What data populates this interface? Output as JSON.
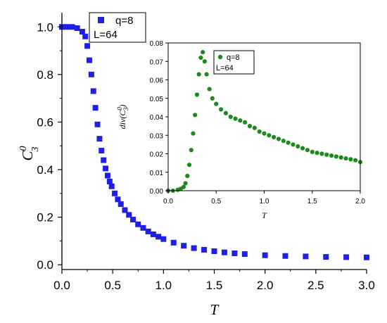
{
  "colors": {
    "main_series": "#1f1fe8",
    "inset_series": "#1e8a1e",
    "axis": "#000000",
    "background": "#ffffff"
  },
  "chart_data": [
    {
      "type": "scatter",
      "marker": "square",
      "xlabel": "T",
      "ylabel": "C3^0",
      "ylabel_main": "C",
      "ylabel_sub": "3",
      "ylabel_sup": "0",
      "xlim": [
        0.0,
        3.0
      ],
      "ylim": [
        -0.02,
        1.06
      ],
      "x_ticks": [
        "0.0",
        "0.5",
        "1.0",
        "1.5",
        "2.0",
        "2.5",
        "3.0"
      ],
      "y_ticks": [
        "0.0",
        "0.2",
        "0.4",
        "0.6",
        "0.8",
        "1.0"
      ],
      "grid": false,
      "legend_position": "top-center",
      "series": [
        {
          "name": "q=8 L=64",
          "legend_lines": [
            "q=8",
            "L=64"
          ],
          "x": [
            0.0,
            0.05,
            0.1,
            0.15,
            0.2,
            0.23,
            0.25,
            0.27,
            0.29,
            0.31,
            0.33,
            0.35,
            0.37,
            0.39,
            0.41,
            0.43,
            0.45,
            0.47,
            0.49,
            0.52,
            0.55,
            0.58,
            0.62,
            0.66,
            0.7,
            0.75,
            0.8,
            0.85,
            0.9,
            0.95,
            1.0,
            1.1,
            1.2,
            1.3,
            1.4,
            1.5,
            1.6,
            1.7,
            1.8,
            2.0,
            2.2,
            2.4,
            2.6,
            2.8,
            3.0
          ],
          "y": [
            1.0,
            1.0,
            1.0,
            0.995,
            0.98,
            0.96,
            0.92,
            0.86,
            0.8,
            0.73,
            0.66,
            0.59,
            0.53,
            0.48,
            0.44,
            0.405,
            0.375,
            0.35,
            0.33,
            0.3,
            0.275,
            0.255,
            0.23,
            0.21,
            0.19,
            0.17,
            0.155,
            0.14,
            0.128,
            0.118,
            0.108,
            0.093,
            0.08,
            0.07,
            0.063,
            0.057,
            0.052,
            0.048,
            0.045,
            0.04,
            0.037,
            0.035,
            0.033,
            0.032,
            0.031
          ]
        }
      ]
    },
    {
      "type": "scatter",
      "marker": "circle",
      "inset": true,
      "xlabel": "T",
      "ylabel": "div(C3^0)",
      "ylabel_main": "div(C",
      "ylabel_sub": "3",
      "ylabel_sup": "0",
      "ylabel_close": ")",
      "xlim": [
        0.0,
        2.0
      ],
      "ylim": [
        0.0,
        0.08
      ],
      "x_ticks": [
        "0.0",
        "0.5",
        "1.0",
        "1.5",
        "2.0"
      ],
      "y_ticks": [
        "0.00",
        "0.01",
        "0.02",
        "0.03",
        "0.04",
        "0.05",
        "0.06",
        "0.07",
        "0.08"
      ],
      "grid": false,
      "legend_position": "top-center",
      "series": [
        {
          "name": "q=8 L=64",
          "legend_lines": [
            "q=8",
            "L=64"
          ],
          "x": [
            0.0,
            0.05,
            0.1,
            0.13,
            0.16,
            0.18,
            0.2,
            0.22,
            0.24,
            0.26,
            0.28,
            0.3,
            0.32,
            0.34,
            0.36,
            0.38,
            0.4,
            0.43,
            0.46,
            0.5,
            0.55,
            0.6,
            0.65,
            0.7,
            0.75,
            0.8,
            0.85,
            0.9,
            0.95,
            1.0,
            1.05,
            1.1,
            1.15,
            1.2,
            1.25,
            1.3,
            1.35,
            1.4,
            1.45,
            1.5,
            1.55,
            1.6,
            1.65,
            1.7,
            1.75,
            1.8,
            1.85,
            1.9,
            1.95,
            2.0
          ],
          "y": [
            0.0,
            0.0,
            0.0005,
            0.001,
            0.002,
            0.004,
            0.008,
            0.014,
            0.022,
            0.031,
            0.041,
            0.052,
            0.063,
            0.072,
            0.075,
            0.07,
            0.063,
            0.055,
            0.05,
            0.047,
            0.044,
            0.042,
            0.04,
            0.039,
            0.038,
            0.037,
            0.035,
            0.034,
            0.032,
            0.031,
            0.03,
            0.029,
            0.028,
            0.027,
            0.026,
            0.025,
            0.024,
            0.023,
            0.022,
            0.021,
            0.0205,
            0.02,
            0.0195,
            0.019,
            0.0185,
            0.018,
            0.0175,
            0.017,
            0.0165,
            0.0155
          ]
        }
      ]
    }
  ]
}
